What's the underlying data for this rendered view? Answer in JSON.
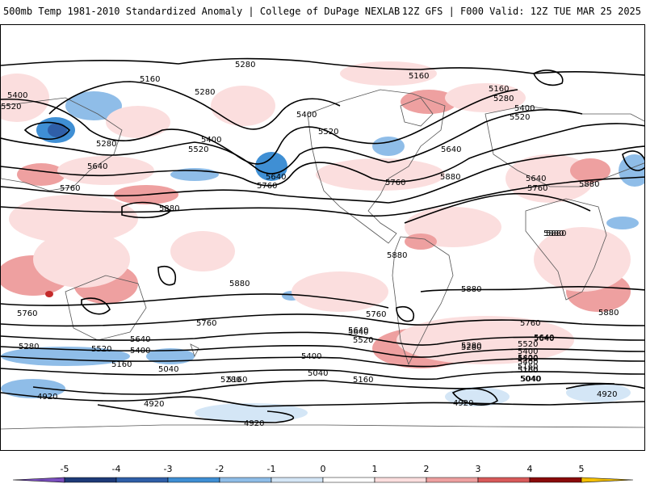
{
  "title": {
    "left": "500mb Temp 1981-2010 Standardized Anomaly | College of DuPage NEXLAB",
    "right": "12Z GFS | F000 Valid: 12Z TUE MAR 25 2025"
  },
  "colorbar": {
    "ticks": [
      "-5",
      "-4",
      "-3",
      "-2",
      "-1",
      "0",
      "1",
      "2",
      "3",
      "4",
      "5"
    ],
    "colors": [
      "#7a4fbf",
      "#1e3a78",
      "#2f5fa8",
      "#3f8fd4",
      "#8fbde8",
      "#d4e6f6",
      "#ffffff",
      "#fbdede",
      "#eea0a0",
      "#d85a5a",
      "#c42a2a",
      "#8a0a0a",
      "#f5c000"
    ]
  },
  "contours": {
    "labels": [
      "5280",
      "5160",
      "5400",
      "5520",
      "5280",
      "5400",
      "5520",
      "5280",
      "5640",
      "5160",
      "5400",
      "5640",
      "5520",
      "5760",
      "5640",
      "5760",
      "5880",
      "5880",
      "5880",
      "5880",
      "5760",
      "5760",
      "5640",
      "5520",
      "5400",
      "5160",
      "5040",
      "5280",
      "5280",
      "5400",
      "5160",
      "4920",
      "4920",
      "4920",
      "5760",
      "5640",
      "5520",
      "5400",
      "5040",
      "5160",
      "5280",
      "5880",
      "5760",
      "5640",
      "5520",
      "5400",
      "5160",
      "5040",
      "4920",
      "5880",
      "5160",
      "5280",
      "5400",
      "5520",
      "5160",
      "5640",
      "5880",
      "5640",
      "5760",
      "5880",
      "5880",
      "5760",
      "5640",
      "5520",
      "5400",
      "5280",
      "5160",
      "5040",
      "4920"
    ]
  }
}
